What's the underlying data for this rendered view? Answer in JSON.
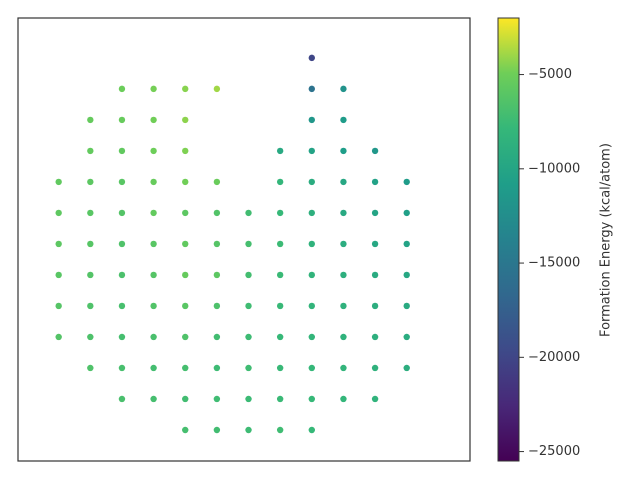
{
  "chart_data": {
    "type": "scatter",
    "xlim": [
      0,
      100
    ],
    "ylim": [
      0,
      100
    ],
    "x": [
      37,
      44,
      51,
      58,
      65,
      23,
      30,
      37,
      44,
      51,
      58,
      65,
      72,
      79,
      16,
      23,
      30,
      37,
      44,
      51,
      58,
      65,
      72,
      79,
      86,
      9,
      16,
      23,
      30,
      37,
      44,
      51,
      58,
      65,
      72,
      79,
      86,
      9,
      16,
      23,
      30,
      37,
      44,
      51,
      58,
      65,
      72,
      79,
      86,
      9,
      16,
      23,
      30,
      37,
      44,
      51,
      58,
      65,
      72,
      79,
      86,
      9,
      16,
      23,
      30,
      37,
      44,
      51,
      58,
      65,
      72,
      79,
      86,
      9,
      16,
      23,
      30,
      37,
      44,
      51,
      58,
      65,
      72,
      79,
      86,
      9,
      16,
      23,
      30,
      37,
      44,
      58,
      65,
      72,
      79,
      86,
      16,
      23,
      30,
      37,
      58,
      65,
      72,
      79,
      16,
      23,
      30,
      37,
      65,
      72,
      23,
      30,
      37,
      44,
      65,
      72,
      65
    ],
    "y": [
      7,
      7,
      7,
      7,
      7,
      14,
      14,
      14,
      14,
      14,
      14,
      14,
      14,
      14,
      21,
      21,
      21,
      21,
      21,
      21,
      21,
      21,
      21,
      21,
      21,
      28,
      28,
      28,
      28,
      28,
      28,
      28,
      28,
      28,
      28,
      28,
      28,
      35,
      35,
      35,
      35,
      35,
      35,
      35,
      35,
      35,
      35,
      35,
      35,
      42,
      42,
      42,
      42,
      42,
      42,
      42,
      42,
      42,
      42,
      42,
      42,
      49,
      49,
      49,
      49,
      49,
      49,
      49,
      49,
      49,
      49,
      49,
      49,
      56,
      56,
      56,
      56,
      56,
      56,
      56,
      56,
      56,
      56,
      56,
      56,
      63,
      63,
      63,
      63,
      63,
      63,
      63,
      63,
      63,
      63,
      63,
      70,
      70,
      70,
      70,
      70,
      70,
      70,
      70,
      77,
      77,
      77,
      77,
      77,
      77,
      84,
      84,
      84,
      84,
      84,
      84,
      91
    ],
    "values": [
      -7000,
      -7200,
      -7400,
      -7300,
      -7800,
      -6800,
      -7000,
      -7200,
      -7300,
      -7500,
      -7600,
      -7800,
      -8000,
      -8400,
      -6500,
      -6900,
      -7100,
      -7000,
      -7400,
      -7300,
      -7700,
      -7900,
      -8200,
      -8600,
      -9000,
      -6300,
      -6600,
      -7000,
      -6800,
      -6500,
      -7200,
      -7400,
      -7800,
      -8100,
      -8500,
      -8800,
      -9200,
      -6200,
      -6500,
      -6900,
      -6400,
      -6000,
      -6600,
      -7300,
      -7700,
      -8200,
      -8600,
      -9000,
      -9400,
      -6000,
      -6300,
      -6700,
      -6200,
      -5400,
      -5800,
      -7100,
      -7600,
      -8300,
      -8800,
      -9300,
      -9800,
      -5800,
      -6100,
      -6500,
      -6000,
      -5600,
      -6200,
      -7000,
      -7500,
      -8500,
      -9100,
      -9700,
      -10200,
      -5700,
      -6000,
      -6300,
      -5500,
      -5800,
      -6400,
      -7200,
      -7800,
      -8800,
      -9500,
      -10100,
      -10600,
      -5600,
      -5800,
      -6000,
      -5300,
      -4900,
      -5200,
      -8000,
      -9200,
      -9800,
      -10400,
      -11000,
      -5500,
      -5600,
      -5000,
      -4600,
      -9500,
      -10200,
      -10800,
      -11500,
      -5400,
      -5300,
      -4900,
      -4300,
      -11500,
      -11000,
      -5100,
      -4800,
      -4400,
      -3900,
      -15500,
      -12000,
      -20000
    ],
    "colormap": "viridis",
    "clim": [
      -25500,
      -2000
    ],
    "cticks": [
      {
        "value": -25000,
        "label": "−25000"
      },
      {
        "value": -20000,
        "label": "−20000"
      },
      {
        "value": -15000,
        "label": "−15000"
      },
      {
        "value": -10000,
        "label": "−10000"
      },
      {
        "value": -5000,
        "label": "−5000"
      }
    ],
    "colorbar_label": "Formation Energy (kcal/atom)"
  }
}
